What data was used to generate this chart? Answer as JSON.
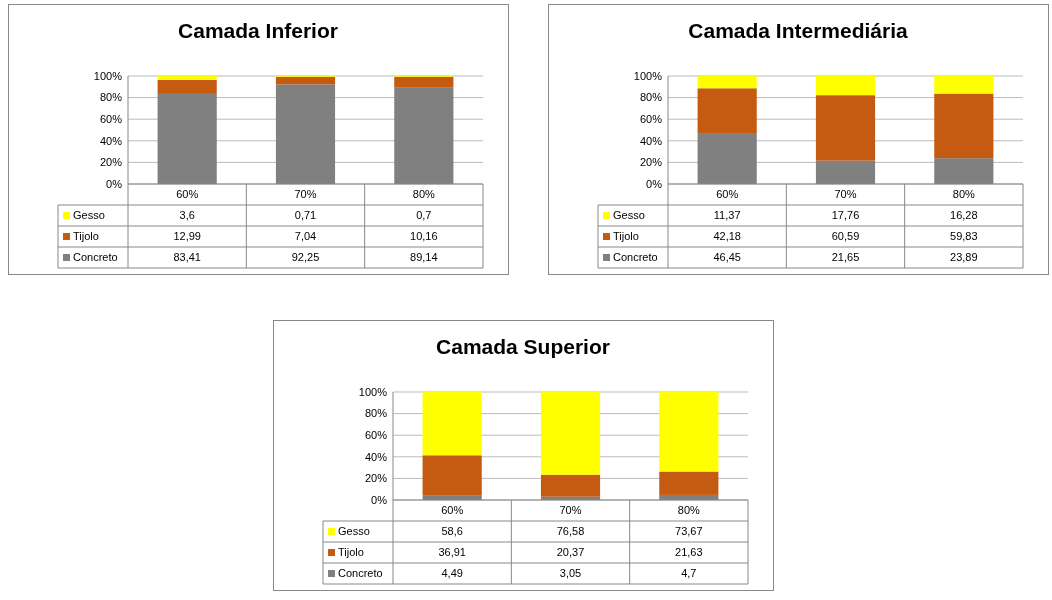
{
  "chart_data": [
    {
      "type": "bar",
      "title": "Camada Inferior",
      "categories": [
        "60%",
        "70%",
        "80%"
      ],
      "stacked": true,
      "ylim": [
        0,
        100
      ],
      "yticks": [
        {
          "value": 0,
          "label": "0%"
        },
        {
          "value": 20,
          "label": "20%"
        },
        {
          "value": 40,
          "label": "40%"
        },
        {
          "value": 60,
          "label": "60%"
        },
        {
          "value": 80,
          "label": "80%"
        },
        {
          "value": 100,
          "label": "100%"
        }
      ],
      "grid": "y",
      "legend": "bottom",
      "series": [
        {
          "name": "Concreto",
          "color": "#808080",
          "values": [
            83.41,
            92.25,
            89.14
          ],
          "value_labels": [
            "83,41",
            "92,25",
            "89,14"
          ]
        },
        {
          "name": "Tijolo",
          "color": "#c55a11",
          "values": [
            12.99,
            7.04,
            10.16
          ],
          "value_labels": [
            "12,99",
            "7,04",
            "10,16"
          ]
        },
        {
          "name": "Gesso",
          "color": "#ffff00",
          "values": [
            3.6,
            0.71,
            0.7
          ],
          "value_labels": [
            "3,6",
            "0,71",
            "0,7"
          ]
        }
      ]
    },
    {
      "type": "bar",
      "title": "Camada Intermediária",
      "categories": [
        "60%",
        "70%",
        "80%"
      ],
      "stacked": true,
      "ylim": [
        0,
        100
      ],
      "yticks": [
        {
          "value": 0,
          "label": "0%"
        },
        {
          "value": 20,
          "label": "20%"
        },
        {
          "value": 40,
          "label": "40%"
        },
        {
          "value": 60,
          "label": "60%"
        },
        {
          "value": 80,
          "label": "80%"
        },
        {
          "value": 100,
          "label": "100%"
        }
      ],
      "grid": "y",
      "legend": "bottom",
      "series": [
        {
          "name": "Concreto",
          "color": "#808080",
          "values": [
            46.45,
            21.65,
            23.89
          ],
          "value_labels": [
            "46,45",
            "21,65",
            "23,89"
          ]
        },
        {
          "name": "Tijolo",
          "color": "#c55a11",
          "values": [
            42.18,
            60.59,
            59.83
          ],
          "value_labels": [
            "42,18",
            "60,59",
            "59,83"
          ]
        },
        {
          "name": "Gesso",
          "color": "#ffff00",
          "values": [
            11.37,
            17.76,
            16.28
          ],
          "value_labels": [
            "11,37",
            "17,76",
            "16,28"
          ]
        }
      ]
    },
    {
      "type": "bar",
      "title": "Camada Superior",
      "categories": [
        "60%",
        "70%",
        "80%"
      ],
      "stacked": true,
      "ylim": [
        0,
        100
      ],
      "yticks": [
        {
          "value": 0,
          "label": "0%"
        },
        {
          "value": 20,
          "label": "20%"
        },
        {
          "value": 40,
          "label": "40%"
        },
        {
          "value": 60,
          "label": "60%"
        },
        {
          "value": 80,
          "label": "80%"
        },
        {
          "value": 100,
          "label": "100%"
        }
      ],
      "grid": "y",
      "legend": "bottom",
      "series": [
        {
          "name": "Concreto",
          "color": "#808080",
          "values": [
            4.49,
            3.05,
            4.7
          ],
          "value_labels": [
            "4,49",
            "3,05",
            "4,7"
          ]
        },
        {
          "name": "Tijolo",
          "color": "#c55a11",
          "values": [
            36.91,
            20.37,
            21.63
          ],
          "value_labels": [
            "36,91",
            "20,37",
            "21,63"
          ]
        },
        {
          "name": "Gesso",
          "color": "#ffff00",
          "values": [
            58.6,
            76.58,
            73.67
          ],
          "value_labels": [
            "58,6",
            "76,58",
            "73,67"
          ]
        }
      ]
    }
  ]
}
